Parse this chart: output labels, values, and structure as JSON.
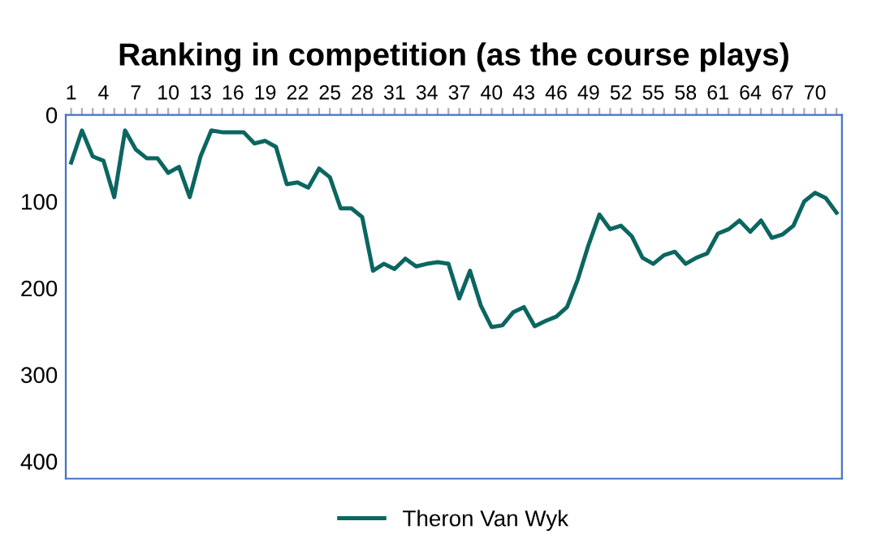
{
  "chart_data": {
    "type": "line",
    "title": "Ranking in competition (as the course plays)",
    "categories": [
      "1",
      null,
      null,
      "4",
      null,
      null,
      "7",
      null,
      null,
      "10",
      null,
      null,
      "13",
      null,
      null,
      "16",
      null,
      null,
      "19",
      null,
      null,
      "22",
      null,
      null,
      "25",
      null,
      null,
      "28",
      null,
      null,
      "31",
      null,
      null,
      "34",
      null,
      null,
      "37",
      null,
      null,
      "40",
      null,
      null,
      "43",
      null,
      null,
      "46",
      null,
      null,
      "49",
      null,
      null,
      "52",
      null,
      null,
      "55",
      null,
      null,
      "58",
      null,
      null,
      "61",
      null,
      null,
      "64",
      null,
      null,
      "67",
      null,
      null,
      "70",
      null,
      null
    ],
    "series": [
      {
        "name": "Theron Van Wyk",
        "color": "#0b6660",
        "values": [
          55,
          18,
          48,
          53,
          95,
          18,
          40,
          50,
          50,
          67,
          60,
          95,
          48,
          18,
          20,
          20,
          20,
          33,
          30,
          37,
          80,
          78,
          84,
          62,
          72,
          108,
          108,
          118,
          180,
          172,
          178,
          166,
          175,
          172,
          170,
          172,
          212,
          180,
          220,
          245,
          243,
          228,
          222,
          244,
          238,
          233,
          222,
          190,
          150,
          115,
          132,
          128,
          140,
          165,
          172,
          162,
          158,
          172,
          165,
          160,
          137,
          132,
          122,
          135,
          122,
          142,
          138,
          128,
          100,
          90,
          96,
          113
        ]
      }
    ],
    "ylim": [
      420,
      0
    ],
    "yticks": [
      0,
      100,
      200,
      300,
      400
    ],
    "legend": "bottom",
    "grid": false,
    "marker": "none",
    "line_style": "solid"
  }
}
